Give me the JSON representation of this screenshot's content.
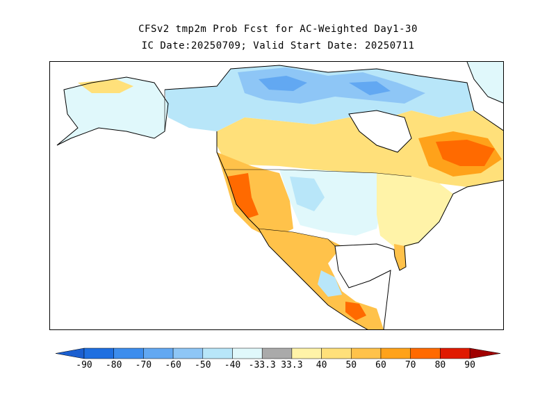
{
  "title": {
    "line1": "CFSv2 tmp2m Prob Fcst for AC-Weighted Day1-30",
    "line2": "IC Date:20250709; Valid Start Date: 20250711"
  },
  "colorbar": {
    "labels": [
      "-90",
      "-80",
      "-70",
      "-60",
      "-50",
      "-40",
      "-33.3",
      "33.3",
      "40",
      "50",
      "60",
      "70",
      "80",
      "90"
    ],
    "bins": [
      {
        "color": "#1f6fe0"
      },
      {
        "color": "#3d8ded"
      },
      {
        "color": "#62a8f2"
      },
      {
        "color": "#8ec6f6"
      },
      {
        "color": "#b8e6f9"
      },
      {
        "color": "#e0f8fb"
      },
      {
        "color": "#aaaaaa"
      },
      {
        "color": "#fff3a8"
      },
      {
        "color": "#ffe07a"
      },
      {
        "color": "#ffc24a"
      },
      {
        "color": "#ffa21a"
      },
      {
        "color": "#ff6a00"
      },
      {
        "color": "#e01a00"
      }
    ],
    "low_end_color": "#1b5fd0",
    "high_end_color": "#a00000"
  },
  "map": {
    "ocean_color": "#ffffff",
    "coastline_color": "#000000"
  }
}
